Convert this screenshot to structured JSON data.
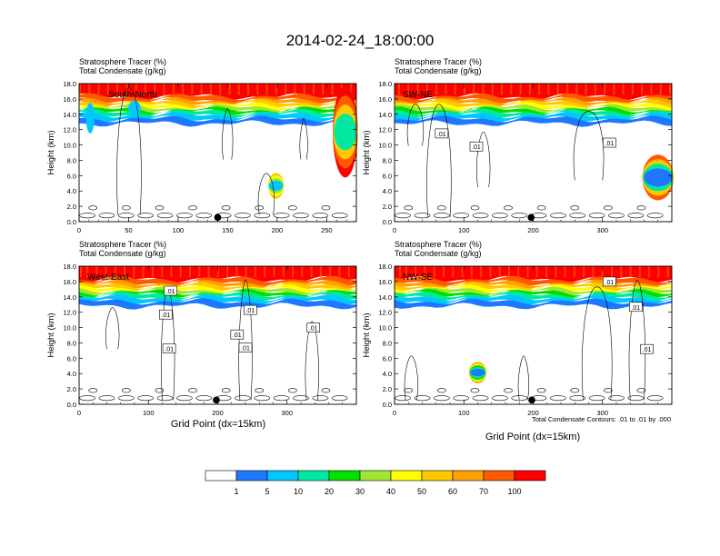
{
  "figure": {
    "title": "2014-02-24_18:00:00",
    "xaxis_label": "Grid Point (dx=15km)",
    "contour_note": "Total Condensate Contours: .01 to .01 by .000"
  },
  "colorbar": {
    "labels": [
      "1",
      "5",
      "10",
      "20",
      "30",
      "40",
      "50",
      "60",
      "70",
      "100"
    ],
    "colors": [
      "#ffffff",
      "#1e78ff",
      "#00c8ff",
      "#00e8a0",
      "#00e000",
      "#a0e632",
      "#ffff00",
      "#ffc800",
      "#ffa000",
      "#ff5a00",
      "#ff0000"
    ]
  },
  "chart_data": [
    {
      "type": "heatmap",
      "id": "south-north",
      "label": "South-North",
      "title_line1": "Stratosphere Tracer   (%)",
      "title_line2": "Total Condensate   (g/kg)",
      "ylabel": "Height (km)",
      "ylim": [
        0,
        18
      ],
      "yticks": [
        "0.0",
        "2.0",
        "4.0",
        "6.0",
        "8.0",
        "10.0",
        "12.0",
        "14.0",
        "16.0",
        "18.0"
      ],
      "xlim": [
        0,
        280
      ],
      "xticks": [
        0,
        50,
        100,
        150,
        200,
        250
      ],
      "marker_x": 140,
      "contour_labels": []
    },
    {
      "type": "heatmap",
      "id": "sw-ne",
      "label": "SW-NE",
      "title_line1": "Stratosphere Tracer   (%)",
      "title_line2": "Total Condensate   (g/kg)",
      "ylabel": "Height (km)",
      "ylim": [
        0,
        18
      ],
      "yticks": [
        "0.0",
        "2.0",
        "4.0",
        "6.0",
        "8.0",
        "10.0",
        "12.0",
        "14.0",
        "16.0",
        "18.0"
      ],
      "xlim": [
        0,
        400
      ],
      "xticks": [
        0,
        100,
        200,
        300
      ],
      "marker_x": 197,
      "contour_labels": [
        {
          "text": ".01",
          "x": 68,
          "y": 11.5
        },
        {
          "text": ".01",
          "x": 118,
          "y": 9.8
        },
        {
          "text": ".01",
          "x": 310,
          "y": 10.3
        }
      ]
    },
    {
      "type": "heatmap",
      "id": "west-east",
      "label": "West-East",
      "title_line1": "Stratosphere Tracer   (%)",
      "title_line2": "Total Condensate   (g/kg)",
      "ylabel": "Height (km)",
      "ylim": [
        0,
        18
      ],
      "yticks": [
        "0.0",
        "2.0",
        "4.0",
        "6.0",
        "8.0",
        "10.0",
        "12.0",
        "14.0",
        "16.0",
        "18.0"
      ],
      "xlim": [
        0,
        400
      ],
      "xticks": [
        0,
        100,
        200,
        300
      ],
      "marker_x": 198,
      "contour_labels": [
        {
          "text": ".01",
          "x": 132,
          "y": 14.8
        },
        {
          "text": ".01",
          "x": 125,
          "y": 11.7
        },
        {
          "text": ".01",
          "x": 130,
          "y": 7.3
        },
        {
          "text": ".01",
          "x": 247,
          "y": 12.3
        },
        {
          "text": ".01",
          "x": 228,
          "y": 9.1
        },
        {
          "text": ".01",
          "x": 240,
          "y": 7.4
        },
        {
          "text": ".01",
          "x": 338,
          "y": 10.0
        }
      ]
    },
    {
      "type": "heatmap",
      "id": "nw-se",
      "label": "NW-SE",
      "title_line1": "Stratosphere Tracer   (%)",
      "title_line2": "Total Condensate   (g/kg)",
      "ylabel": "Height (km)",
      "ylim": [
        0,
        18
      ],
      "yticks": [
        "0.0",
        "2.0",
        "4.0",
        "6.0",
        "8.0",
        "10.0",
        "12.0",
        "14.0",
        "16.0",
        "18.0"
      ],
      "xlim": [
        0,
        400
      ],
      "xticks": [
        0,
        100,
        200,
        300
      ],
      "marker_x": 198,
      "contour_labels": [
        {
          "text": ".01",
          "x": 310,
          "y": 16.0
        },
        {
          "text": ".01",
          "x": 348,
          "y": 12.7
        },
        {
          "text": ".01",
          "x": 364,
          "y": 7.2
        }
      ]
    }
  ]
}
